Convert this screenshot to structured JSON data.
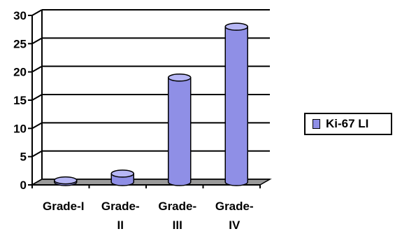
{
  "chart_data": {
    "type": "bar",
    "style": "3d-cylinder",
    "categories": [
      "Grade-I",
      "Grade-II",
      "Grade-III",
      "Grade-IV"
    ],
    "category_lines": [
      [
        "Grade-I"
      ],
      [
        "Grade-",
        "II"
      ],
      [
        "Grade-",
        "III"
      ],
      [
        "Grade-",
        "IV"
      ]
    ],
    "series": [
      {
        "name": "Ki-67 LI",
        "values": [
          0.3,
          1.5,
          18.5,
          27.5
        ]
      }
    ],
    "ylim": [
      0,
      30
    ],
    "yticks": [
      0,
      5,
      10,
      15,
      20,
      25,
      30
    ],
    "grid": true,
    "legend": "right",
    "colors": {
      "bar_side": "#8f8fe6",
      "bar_top": "#b7b7f5",
      "floor": "#9a9a9a"
    }
  }
}
